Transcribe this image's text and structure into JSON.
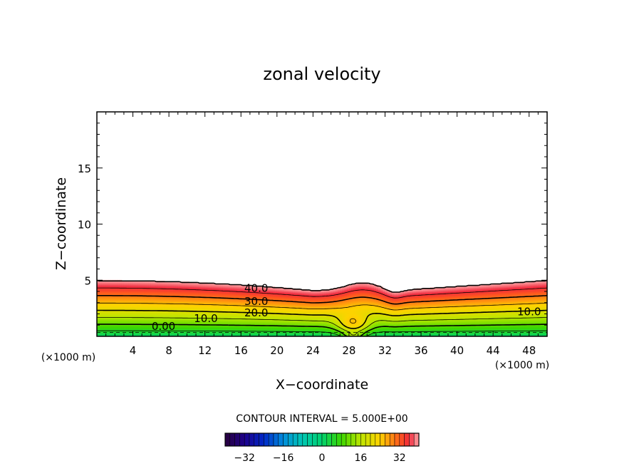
{
  "chart_data": {
    "type": "contour",
    "title": "zonal velocity",
    "xlabel": "X−coordinate",
    "ylabel": "Z−coordinate",
    "x_unit_left": "(×1000 m)",
    "x_unit_right": "(×1000 m)",
    "xlim": [
      0,
      50
    ],
    "ylim": [
      0,
      20
    ],
    "x_ticks": [
      4,
      8,
      12,
      16,
      20,
      24,
      28,
      32,
      36,
      40,
      44,
      48
    ],
    "y_ticks": [
      5,
      10,
      15
    ],
    "contour_interval_text": "CONTOUR INTERVAL = 5.000E+00",
    "colorbar": {
      "range": [
        -40,
        40
      ],
      "ticks": [
        -32,
        -16,
        0,
        16,
        32
      ],
      "tick_labels": [
        "−32",
        "−16",
        "0",
        "16",
        "32"
      ]
    },
    "contour_labels": [
      {
        "text": "40.0",
        "x": 17.7,
        "z": 4.3
      },
      {
        "text": "30.0",
        "x": 17.7,
        "z": 3.1
      },
      {
        "text": "20.0",
        "x": 17.7,
        "z": 2.1
      },
      {
        "text": "10.0",
        "x": 12.1,
        "z": 1.6
      },
      {
        "text": "0.00",
        "x": 7.4,
        "z": 0.9
      },
      {
        "text": "10.0",
        "x": 48.0,
        "z": 2.2
      }
    ],
    "field_description_values": {
      "surface_speed": 0,
      "top_of_layer_speed": 40,
      "layer_top_left": 5.0,
      "layer_top_right": 5.0,
      "dip_min_height": 4.0,
      "bump_center_x": 30
    }
  }
}
